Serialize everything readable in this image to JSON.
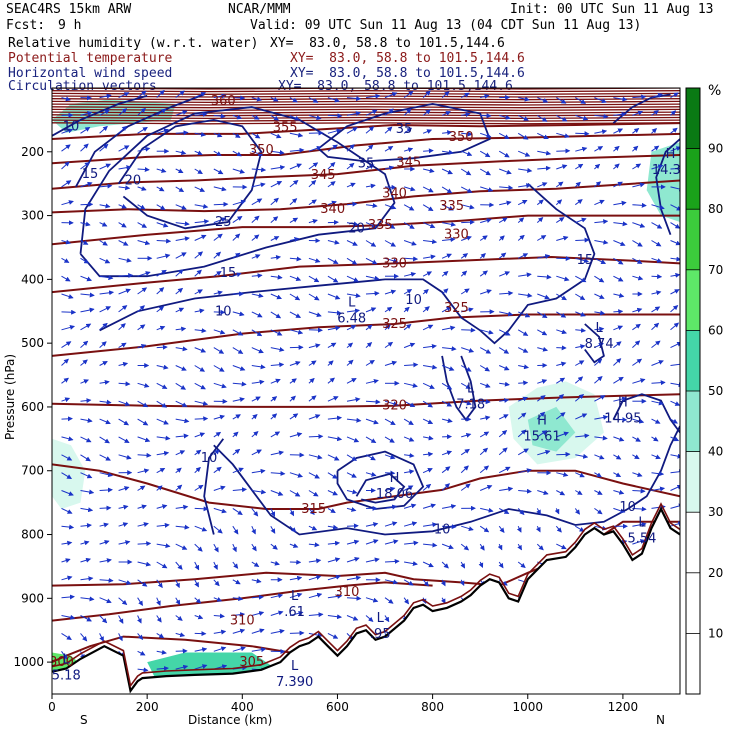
{
  "header": {
    "model": "SEAC4RS 15km ARW",
    "org": "NCAR/MMM",
    "init": "Init: 00 UTC Sun 11 Aug 13",
    "fcst_label": "Fcst:",
    "fcst_value": "9 h",
    "valid": "Valid: 09 UTC Sun 11 Aug 13 (04 CDT Sun 11 Aug 13)",
    "fields": [
      {
        "name": "Relative humidity (w.r.t. water)",
        "xy": "XY=  83.0, 58.8 to 101.5,144.6",
        "color": "#000000"
      },
      {
        "name": "Potential temperature",
        "xy": "XY=  83.0, 58.8 to 101.5,144.6",
        "color": "#8b1a1a"
      },
      {
        "name": "Horizontal wind speed",
        "xy": "XY=  83.0, 58.8 to 101.5,144.6",
        "color": "#1a237e"
      },
      {
        "name": "Circulation vectors",
        "xy": "XY=  83.0, 58.8 to 101.5,144.6",
        "color": "#1a237e"
      }
    ]
  },
  "colors": {
    "theta": "#7a1010",
    "wind": "#101a80",
    "vectors": "#1a33c8",
    "terrain": "#000000",
    "rh_scale": [
      "#ffffff",
      "#ffffff",
      "#ffffff",
      "#d8f8ee",
      "#8fe8d0",
      "#44d6a8",
      "#5ee868",
      "#3ccc3c",
      "#1aa21a",
      "#0a7a14"
    ]
  },
  "chart_data": {
    "type": "heatmap",
    "xlabel": "Distance (km)",
    "ylabel": "Pressure (hPa)",
    "xlim": [
      0,
      1320
    ],
    "ylim": [
      1050,
      100
    ],
    "x_ticks": [
      "0",
      "200",
      "400",
      "600",
      "800",
      "1000",
      "1200"
    ],
    "y_ticks": [
      "200",
      "300",
      "400",
      "500",
      "600",
      "700",
      "800",
      "900",
      "1000"
    ],
    "x_end_labels": {
      "left": "S",
      "right": "N"
    },
    "colorbar": {
      "unit": "%",
      "ticks": [
        "10",
        "20",
        "30",
        "40",
        "50",
        "60",
        "70",
        "80",
        "90"
      ]
    },
    "theta_contours": [
      {
        "label": "300",
        "x": 20,
        "y": 1000
      },
      {
        "label": "305",
        "x": 420,
        "y": 1000
      },
      {
        "label": "310",
        "x": 400,
        "y": 935
      },
      {
        "label": "310",
        "x": 620,
        "y": 890
      },
      {
        "label": "315",
        "x": 550,
        "y": 760
      },
      {
        "label": "320",
        "x": 720,
        "y": 598
      },
      {
        "label": "325",
        "x": 720,
        "y": 470
      },
      {
        "label": "325",
        "x": 850,
        "y": 445
      },
      {
        "label": "330",
        "x": 720,
        "y": 375
      },
      {
        "label": "330",
        "x": 850,
        "y": 330
      },
      {
        "label": "335",
        "x": 690,
        "y": 315
      },
      {
        "label": "335",
        "x": 840,
        "y": 285
      },
      {
        "label": "340",
        "x": 590,
        "y": 290
      },
      {
        "label": "340",
        "x": 720,
        "y": 265
      },
      {
        "label": "345",
        "x": 570,
        "y": 236
      },
      {
        "label": "345",
        "x": 750,
        "y": 217
      },
      {
        "label": "350",
        "x": 440,
        "y": 197
      },
      {
        "label": "350",
        "x": 860,
        "y": 177
      },
      {
        "label": "355",
        "x": 490,
        "y": 162
      },
      {
        "label": "360",
        "x": 360,
        "y": 120
      }
    ],
    "wind_contours": [
      {
        "label": "10",
        "x": 40,
        "y": 160
      },
      {
        "label": "15",
        "x": 80,
        "y": 235
      },
      {
        "label": "20",
        "x": 170,
        "y": 245
      },
      {
        "label": "25",
        "x": 360,
        "y": 310
      },
      {
        "label": "20",
        "x": 640,
        "y": 320
      },
      {
        "label": "15",
        "x": 370,
        "y": 390
      },
      {
        "label": "10",
        "x": 360,
        "y": 450
      },
      {
        "label": "10",
        "x": 760,
        "y": 432
      },
      {
        "label": "15",
        "x": 1120,
        "y": 370
      },
      {
        "label": "35",
        "x": 660,
        "y": 218
      },
      {
        "label": "35",
        "x": 740,
        "y": 164
      },
      {
        "label": "10",
        "x": 330,
        "y": 680
      },
      {
        "label": "10",
        "x": 820,
        "y": 792
      },
      {
        "label": "10",
        "x": 1210,
        "y": 757
      }
    ],
    "extrema": [
      {
        "type": "L",
        "value": "6.48",
        "x": 630,
        "y": 455
      },
      {
        "type": "L",
        "value": "7.18",
        "x": 880,
        "y": 590
      },
      {
        "type": "L",
        "value": "8.74",
        "x": 1150,
        "y": 495
      },
      {
        "type": "H",
        "value": "15.61",
        "x": 1030,
        "y": 640
      },
      {
        "type": "H",
        "value": "14.95",
        "x": 1200,
        "y": 612
      },
      {
        "type": "H",
        "value": "18.06",
        "x": 720,
        "y": 730
      },
      {
        "type": "L",
        "value": "5.54",
        "x": 1240,
        "y": 800
      },
      {
        "type": "L",
        "value": ".61",
        "x": 510,
        "y": 915
      },
      {
        "type": "L",
        "value": ".95",
        "x": 690,
        "y": 950
      },
      {
        "type": "L",
        "value": "7.390",
        "x": 510,
        "y": 1025
      },
      {
        "type": "H",
        "value": "14.36",
        "x": 1300,
        "y": 222
      },
      {
        "type": "L",
        "value": "5.18",
        "x": 30,
        "y": 1015
      }
    ]
  }
}
